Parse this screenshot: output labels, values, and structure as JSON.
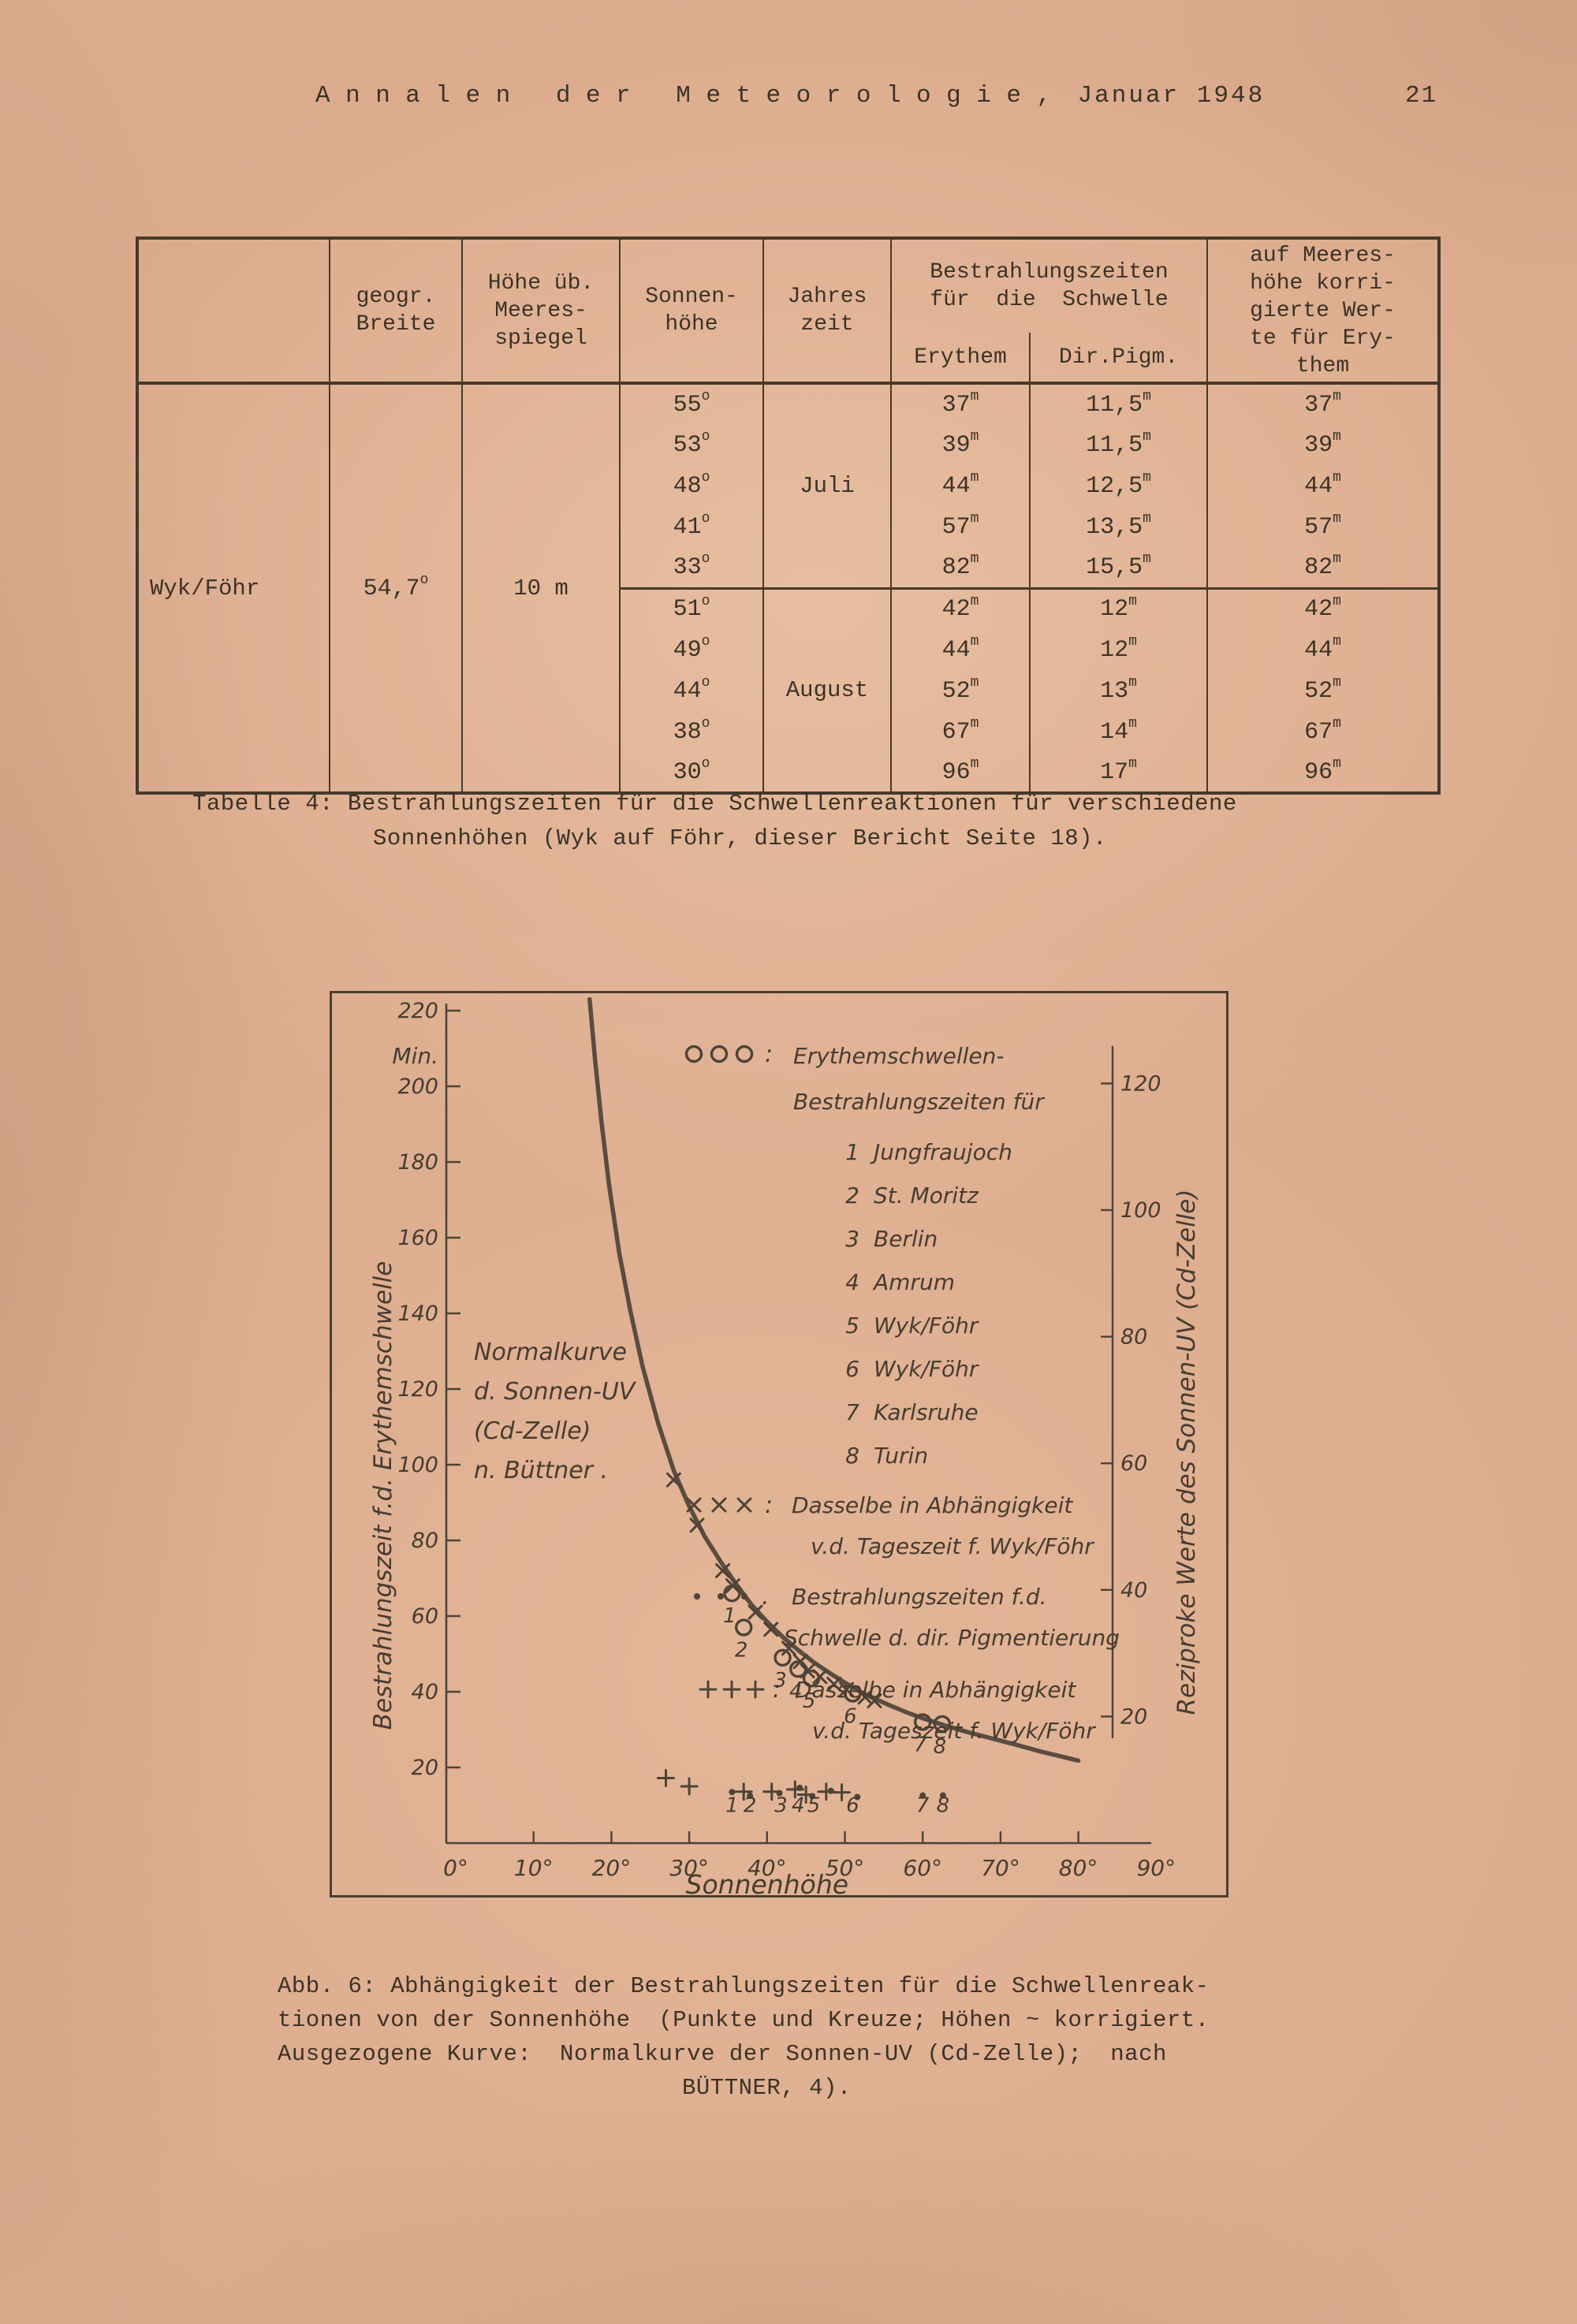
{
  "page": {
    "header_title": "Annalen der Meteorologie,",
    "header_date": "Januar 1948",
    "page_number": "21"
  },
  "table": {
    "headers": {
      "corner": "",
      "geogr": [
        "geogr.",
        "Breite"
      ],
      "hoehe": [
        "Höhe üb.",
        "Meeres-",
        "spiegel"
      ],
      "sonnenhoehe": [
        "Sonnen-",
        "höhe"
      ],
      "jahreszeit": [
        "Jahres",
        "zeit"
      ],
      "bestrahlung_group": [
        "Bestrahlungszeiten",
        "für  die  Schwelle"
      ],
      "sub": [
        "Erythem",
        "Dir.Pigm."
      ],
      "korrigiert": [
        "auf Meeres-",
        "höhe korri-",
        "gierte Wer-",
        "te für Ery-",
        "them"
      ]
    },
    "row_label": "Wyk/Föhr",
    "latitude": "54,7",
    "altitude": "10 m",
    "unit_deg": "o",
    "unit_min": "m",
    "blocks": [
      {
        "season": "Juli",
        "rows": [
          {
            "s": "55",
            "e": "37",
            "p": "11,5",
            "k": "37"
          },
          {
            "s": "53",
            "e": "39",
            "p": "11,5",
            "k": "39"
          },
          {
            "s": "48",
            "e": "44",
            "p": "12,5",
            "k": "44"
          },
          {
            "s": "41",
            "e": "57",
            "p": "13,5",
            "k": "57"
          },
          {
            "s": "33",
            "e": "82",
            "p": "15,5",
            "k": "82"
          }
        ]
      },
      {
        "season": "August",
        "rows": [
          {
            "s": "51",
            "e": "42",
            "p": "12",
            "k": "42"
          },
          {
            "s": "49",
            "e": "44",
            "p": "12",
            "k": "44"
          },
          {
            "s": "44",
            "e": "52",
            "p": "13",
            "k": "52"
          },
          {
            "s": "38",
            "e": "67",
            "p": "14",
            "k": "67"
          },
          {
            "s": "30",
            "e": "96",
            "p": "17",
            "k": "96"
          }
        ]
      }
    ],
    "caption_lines": [
      "Tabelle 4: Bestrahlungszeiten für die Schwellenreaktionen für verschiedene",
      "Sonnenhöhen (Wyk auf Föhr, dieser Bericht Seite 18)."
    ]
  },
  "chart_data": {
    "type": "scatter",
    "title": "",
    "xlabel": "Sonnenhöhe",
    "ylabel_left": "Bestrahlungszeit f.d. Erythemschwelle",
    "ylabel_left_unit": "Min.",
    "ylabel_right": "Reziproke Werte des Sonnen-UV (Cd-Zelle)",
    "grid": false,
    "x_range": [
      0,
      90
    ],
    "x_ticks": [
      0,
      10,
      20,
      30,
      40,
      50,
      60,
      70,
      80,
      90
    ],
    "x_tick_suffix": "°",
    "y_left_range": [
      0,
      228
    ],
    "y_left_ticks": [
      220,
      200,
      180,
      160,
      140,
      120,
      100,
      80,
      60,
      40,
      20
    ],
    "y_right_range": [
      0,
      133
    ],
    "y_right_ticks": [
      120,
      100,
      80,
      60,
      40,
      20
    ],
    "annotation_lines": [
      "Normalkurve",
      "d. Sonnen-UV",
      "(Cd-Zelle)",
      "n. Büttner ."
    ],
    "legend": [
      {
        "symbol": "circle",
        "symbol_text": "o o o",
        "sep": ":",
        "lines": [
          "Erythemschwellen-",
          "Bestrahlungszeiten für"
        ]
      },
      {
        "symbol": "x",
        "symbol_text": "x x x",
        "sep": ":",
        "lines": [
          "Dasselbe in Abhängigkeit",
          "v.d. Tageszeit f. Wyk/Föhr"
        ]
      },
      {
        "symbol": "dot",
        "symbol_text": "· · ·",
        "sep": ".",
        "lines": [
          "Bestrahlungszeiten f.d.",
          "Schwelle d. dir. Pigmentierung"
        ]
      },
      {
        "symbol": "plus",
        "symbol_text": "+++",
        "sep": ":",
        "lines": [
          "Dasselbe in Abhängigkeit",
          "v.d. Tageszeit f. Wyk/Föhr"
        ]
      }
    ],
    "stations": [
      {
        "num": "1",
        "name": "Jungfraujoch"
      },
      {
        "num": "2",
        "name": "St. Moritz"
      },
      {
        "num": "3",
        "name": "Berlin"
      },
      {
        "num": "4",
        "name": "Amrum"
      },
      {
        "num": "5",
        "name": "Wyk/Föhr"
      },
      {
        "num": "6",
        "name": "Wyk/Föhr"
      },
      {
        "num": "7",
        "name": "Karlsruhe"
      },
      {
        "num": "8",
        "name": "Turin"
      }
    ],
    "normal_curve": [
      [
        17.2,
        223
      ],
      [
        17.9,
        207
      ],
      [
        18.7,
        191
      ],
      [
        19.7,
        174
      ],
      [
        21,
        156
      ],
      [
        22.4,
        141
      ],
      [
        24,
        126
      ],
      [
        26,
        111
      ],
      [
        28,
        98.5
      ],
      [
        30,
        89
      ],
      [
        32,
        81
      ],
      [
        34,
        74.5
      ],
      [
        36,
        68.5
      ],
      [
        38,
        63
      ],
      [
        40,
        58.5
      ],
      [
        42,
        54.5
      ],
      [
        44,
        51
      ],
      [
        46,
        47.8
      ],
      [
        48,
        45
      ],
      [
        50,
        42.4
      ],
      [
        52,
        40
      ],
      [
        54,
        38
      ],
      [
        56,
        36.2
      ],
      [
        58,
        34.5
      ],
      [
        60,
        33
      ],
      [
        63,
        31
      ],
      [
        66,
        29.2
      ],
      [
        69,
        27.6
      ],
      [
        72,
        26
      ],
      [
        75,
        24.3
      ],
      [
        78,
        22.8
      ],
      [
        80,
        21.8
      ]
    ],
    "series": [
      {
        "id": "erythem_circles",
        "marker": "circle",
        "labels": [
          "1",
          "2",
          "3",
          "4",
          "5",
          "6",
          "7",
          "8"
        ],
        "points": [
          [
            35.5,
            66
          ],
          [
            37,
            57
          ],
          [
            42,
            49
          ],
          [
            44,
            46
          ],
          [
            45.7,
            43.5
          ],
          [
            51,
            39.5
          ],
          [
            60,
            32
          ],
          [
            62.5,
            31.5
          ]
        ]
      },
      {
        "id": "tageszeit_crosses",
        "marker": "x",
        "points": [
          [
            28,
            96
          ],
          [
            31,
            84
          ],
          [
            34.3,
            72
          ],
          [
            35.6,
            68
          ],
          [
            38.5,
            61
          ],
          [
            40.5,
            56.5
          ],
          [
            42.8,
            51.5
          ],
          [
            44.3,
            48
          ],
          [
            45.2,
            45.5
          ],
          [
            46.8,
            44
          ],
          [
            48.6,
            42
          ],
          [
            50.2,
            40.6
          ],
          [
            52.6,
            38.6
          ],
          [
            53.8,
            37.6
          ]
        ]
      },
      {
        "id": "pigment_dots",
        "marker": "dot",
        "points": [
          [
            35.5,
            13.5
          ],
          [
            37.8,
            12.5
          ],
          [
            41.6,
            13.2
          ],
          [
            44.2,
            14.6
          ],
          [
            45.8,
            12.4
          ],
          [
            48.2,
            13.8
          ],
          [
            51.6,
            12.2
          ],
          [
            60,
            12.6
          ],
          [
            62.6,
            12.6
          ]
        ]
      },
      {
        "id": "pigment_tageszeit_plus",
        "marker": "plus",
        "points": [
          [
            27,
            17.2
          ],
          [
            30,
            15
          ],
          [
            37,
            13.6
          ],
          [
            40.6,
            13.6
          ],
          [
            43.6,
            14.2
          ],
          [
            45,
            12.8
          ],
          [
            47.6,
            13.6
          ],
          [
            49.6,
            13.4
          ]
        ]
      }
    ],
    "bottom_point_labels": [
      {
        "x": 35.5,
        "text": "1"
      },
      {
        "x": 37.8,
        "text": "2"
      },
      {
        "x": 41.8,
        "text": "3"
      },
      {
        "x": 44,
        "text": "4"
      },
      {
        "x": 46,
        "text": "5"
      },
      {
        "x": 51,
        "text": "6"
      },
      {
        "x": 60,
        "text": "7"
      },
      {
        "x": 62.6,
        "text": "8"
      }
    ]
  },
  "figure_caption_lines": [
    "Abb. 6: Abhängigkeit der Bestrahlungszeiten für die Schwellenreak-",
    "tionen von der Sonnenhöhe  (Punkte und Kreuze; Höhen ~ korrigiert.",
    "Ausgezogene Kurve:  Normalkurve der Sonnen-UV (Cd-Zelle);  nach",
    "BÜTTNER, 4)."
  ]
}
